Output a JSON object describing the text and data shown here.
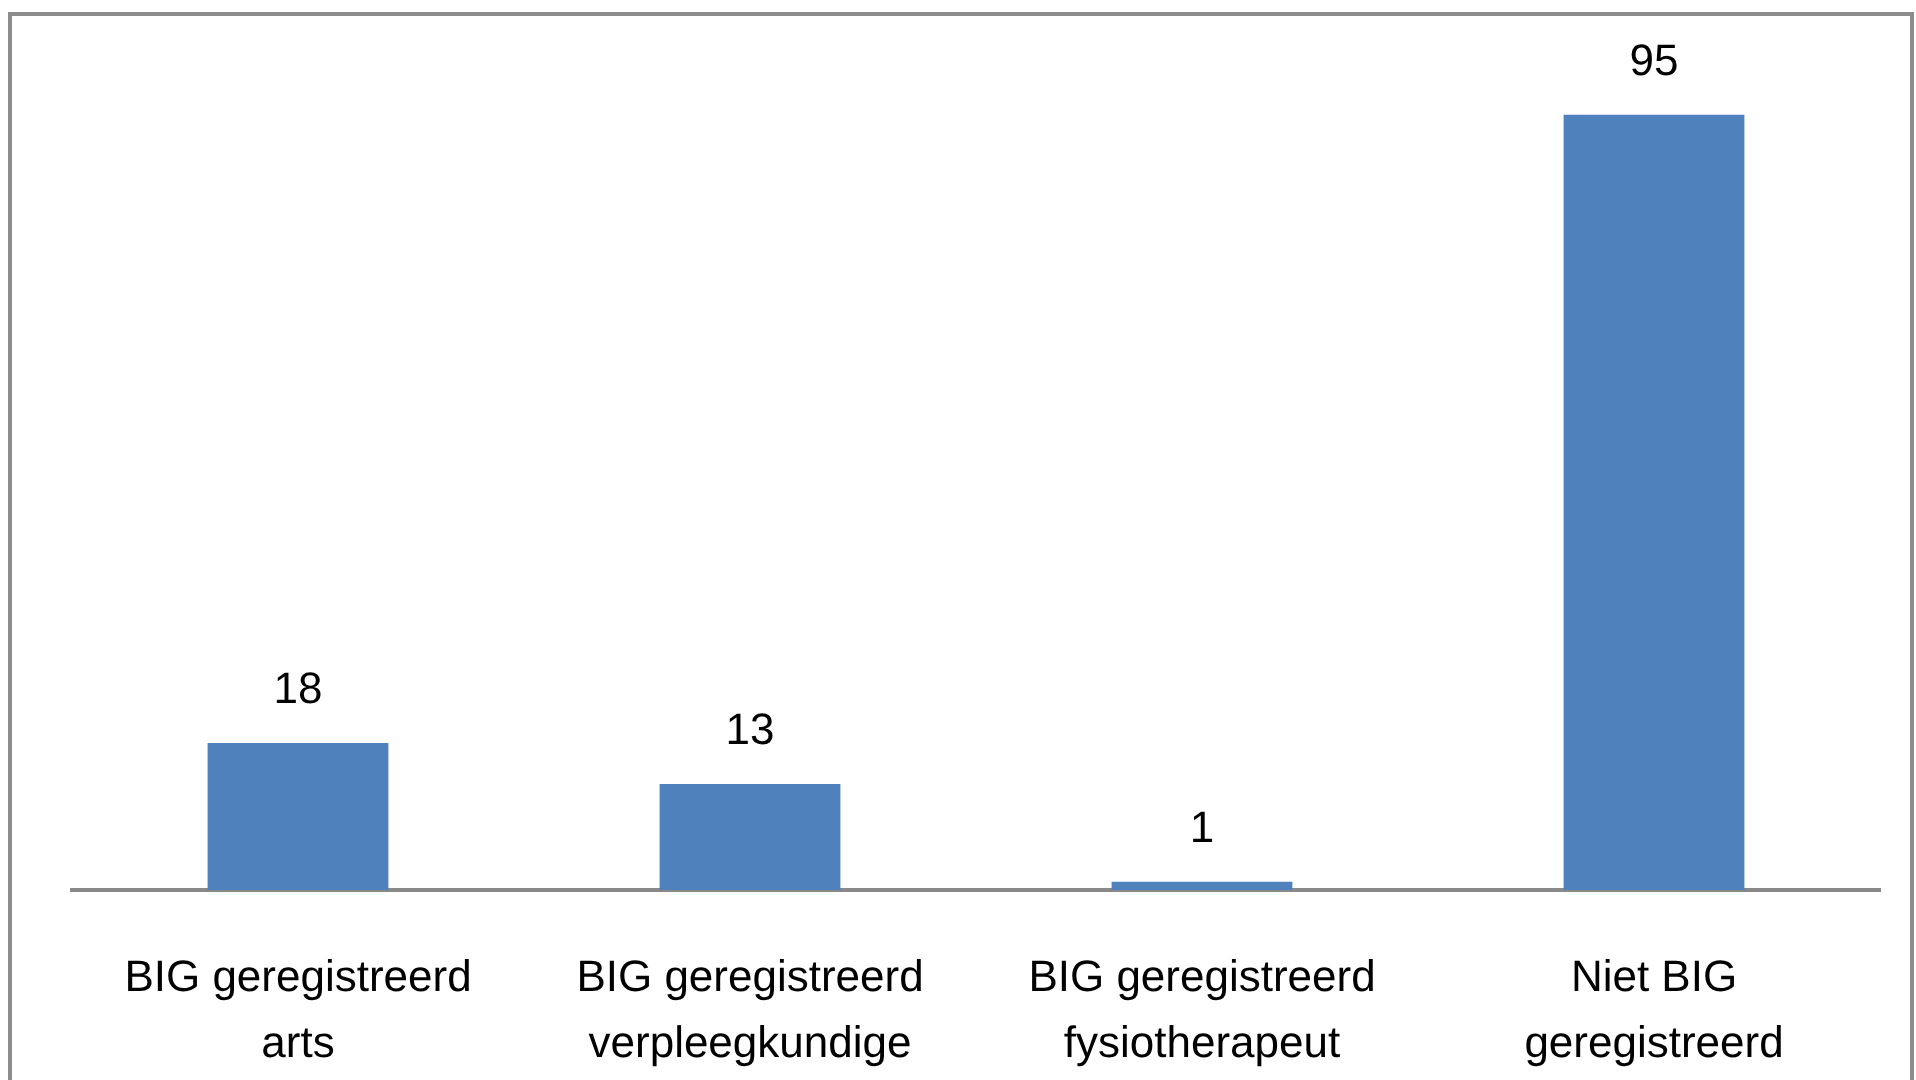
{
  "chart_data": {
    "type": "bar",
    "categories": [
      "BIG geregistreerd arts",
      "BIG geregistreerd verpleegkundige",
      "BIG geregistreerd fysiotherapeut",
      "Niet BIG geregistreerd"
    ],
    "values": [
      18,
      13,
      1,
      95
    ],
    "color": "#4f81bd",
    "data_labels": true
  }
}
